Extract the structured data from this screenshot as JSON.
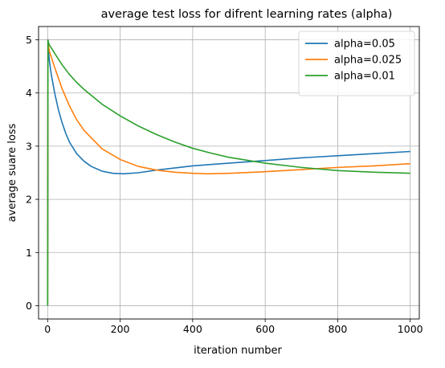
{
  "chart_data": {
    "type": "line",
    "title": "average test loss for difrent learning rates (alpha)",
    "xlabel": "iteration number",
    "ylabel": "average suare loss",
    "xlim": [
      -25,
      1025
    ],
    "ylim": [
      -0.25,
      5.25
    ],
    "xticks": [
      0,
      200,
      400,
      600,
      800,
      1000
    ],
    "yticks": [
      0,
      1,
      2,
      3,
      4,
      5
    ],
    "grid": true,
    "legend_position": "top-right",
    "series": [
      {
        "name": "alpha=0.05",
        "color": "#1f77b4",
        "x": [
          0,
          1,
          2,
          5,
          10,
          20,
          30,
          40,
          50,
          60,
          80,
          100,
          120,
          150,
          180,
          210,
          250,
          300,
          400,
          500,
          600,
          700,
          800,
          900,
          1000
        ],
        "y": [
          0,
          5.0,
          4.82,
          4.6,
          4.35,
          3.98,
          3.68,
          3.44,
          3.24,
          3.08,
          2.86,
          2.72,
          2.62,
          2.53,
          2.49,
          2.48,
          2.5,
          2.55,
          2.63,
          2.68,
          2.73,
          2.78,
          2.82,
          2.86,
          2.9
        ]
      },
      {
        "name": "alpha=0.025",
        "color": "#ff7f0e",
        "x": [
          0,
          1,
          2,
          5,
          10,
          20,
          40,
          60,
          80,
          100,
          150,
          200,
          250,
          300,
          350,
          400,
          440,
          500,
          600,
          700,
          800,
          900,
          1000
        ],
        "y": [
          0,
          5.0,
          4.9,
          4.78,
          4.68,
          4.47,
          4.08,
          3.76,
          3.5,
          3.3,
          2.95,
          2.75,
          2.62,
          2.55,
          2.51,
          2.49,
          2.48,
          2.49,
          2.52,
          2.56,
          2.6,
          2.63,
          2.67
        ]
      },
      {
        "name": "alpha=0.01",
        "color": "#2ca02c",
        "x": [
          0,
          1,
          2,
          5,
          10,
          20,
          40,
          60,
          80,
          100,
          150,
          200,
          250,
          300,
          350,
          400,
          450,
          500,
          600,
          700,
          800,
          900,
          1000
        ],
        "y": [
          0,
          5.0,
          4.95,
          4.9,
          4.85,
          4.74,
          4.53,
          4.35,
          4.2,
          4.07,
          3.79,
          3.57,
          3.38,
          3.22,
          3.08,
          2.96,
          2.87,
          2.79,
          2.68,
          2.6,
          2.54,
          2.51,
          2.49
        ]
      }
    ]
  }
}
